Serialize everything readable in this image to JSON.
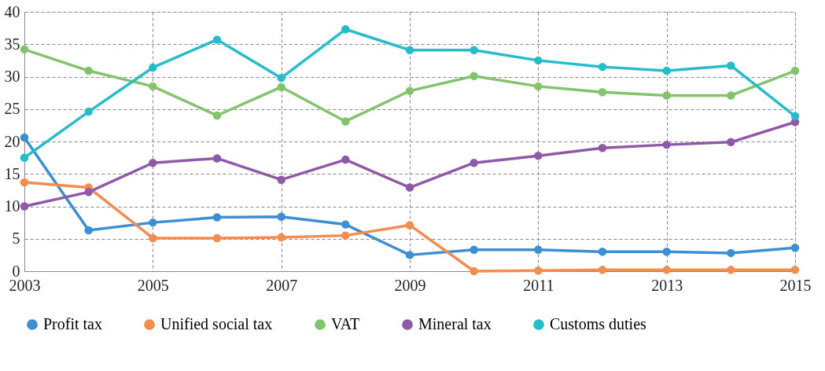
{
  "chart_data": {
    "type": "line",
    "x": [
      2003,
      2004,
      2005,
      2006,
      2007,
      2008,
      2009,
      2010,
      2011,
      2012,
      2013,
      2014,
      2015
    ],
    "xlim": [
      2003,
      2015
    ],
    "xticks": [
      2003,
      2005,
      2007,
      2009,
      2011,
      2013,
      2015
    ],
    "ylim": [
      0,
      40
    ],
    "yticks": [
      0,
      5,
      10,
      15,
      20,
      25,
      30,
      35,
      40
    ],
    "grid": true,
    "legend": "bottom",
    "marker": "circle",
    "line_style": "solid",
    "series": [
      {
        "name": "Profit tax",
        "color": "#3d8fd1",
        "values": [
          20.6,
          6.3,
          7.5,
          8.3,
          8.4,
          7.2,
          2.5,
          3.3,
          3.3,
          3.0,
          3.0,
          2.8,
          3.6
        ]
      },
      {
        "name": "Unified social tax",
        "color": "#f38c4f",
        "values": [
          13.7,
          12.9,
          5.1,
          5.1,
          5.2,
          5.5,
          7.1,
          0,
          0.1,
          0.2,
          0.2,
          0.2,
          0.2
        ]
      },
      {
        "name": "VAT",
        "color": "#84c36e",
        "values": [
          34.2,
          30.9,
          28.5,
          24.0,
          28.4,
          23.1,
          27.8,
          30.1,
          28.5,
          27.6,
          27.1,
          27.1,
          30.9
        ]
      },
      {
        "name": "Mineral tax",
        "color": "#8e5aa8",
        "values": [
          10.0,
          12.2,
          16.7,
          17.4,
          14.1,
          17.2,
          12.9,
          16.7,
          17.8,
          19.0,
          19.5,
          19.9,
          23.0
        ]
      },
      {
        "name": "Customs duties",
        "color": "#27bcc9",
        "values": [
          17.5,
          24.6,
          31.4,
          35.7,
          29.8,
          37.3,
          34.1,
          34.1,
          32.5,
          31.5,
          30.9,
          31.7,
          23.9
        ]
      }
    ]
  }
}
